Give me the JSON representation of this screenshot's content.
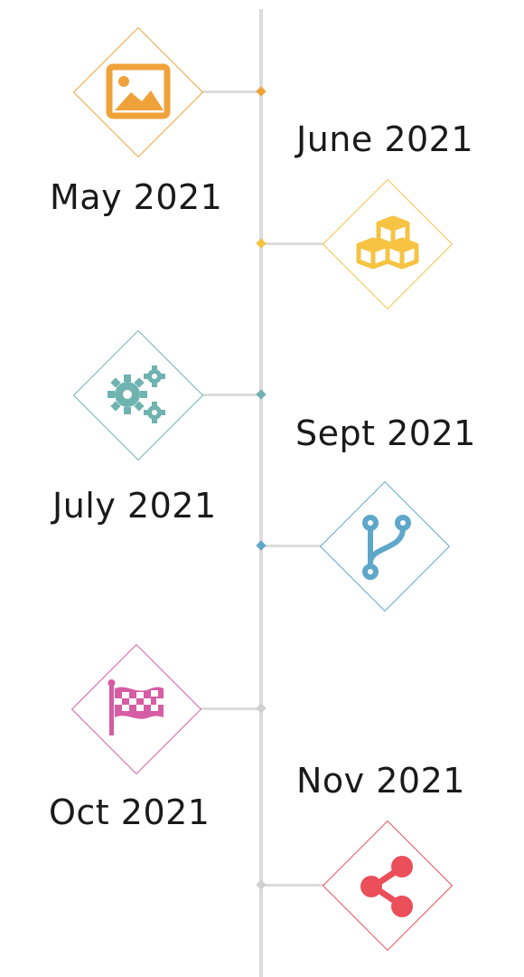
{
  "timeline": {
    "events": [
      {
        "date": "May 2021",
        "icon": "image-icon",
        "color": "#f0a23a"
      },
      {
        "date": "June 2021",
        "icon": "cubes-icon",
        "color": "#f6c343"
      },
      {
        "date": "July 2021",
        "icon": "gears-icon",
        "color": "#6fb3b1"
      },
      {
        "date": "Sept 2021",
        "icon": "branch-icon",
        "color": "#5ea7c9"
      },
      {
        "date": "Oct 2021",
        "icon": "flag-icon",
        "color": "#d65ca4"
      },
      {
        "date": "Nov 2021",
        "icon": "share-icon",
        "color": "#ea4f5a"
      }
    ]
  }
}
